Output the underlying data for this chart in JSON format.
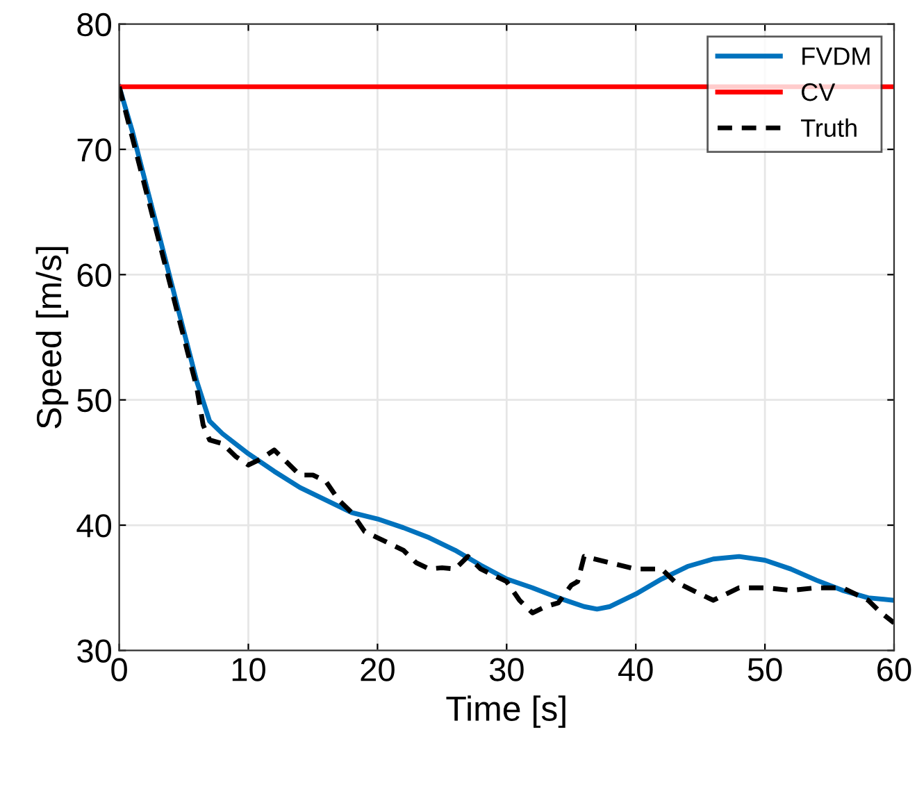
{
  "chart_data": {
    "type": "line",
    "xlabel": "Time [s]",
    "ylabel": "Speed [m/s]",
    "xlim": [
      0,
      60
    ],
    "ylim": [
      30,
      80
    ],
    "xticks": [
      0,
      10,
      20,
      30,
      40,
      50,
      60
    ],
    "yticks": [
      30,
      40,
      50,
      60,
      70,
      80
    ],
    "grid": true,
    "legend": "top right",
    "series": [
      {
        "name": "FVDM",
        "color": "#0072bd",
        "line_style": "solid",
        "x": [
          0,
          1,
          2,
          3,
          4,
          5,
          6,
          7,
          8,
          10,
          12,
          14,
          16,
          18,
          20,
          22,
          24,
          26,
          28,
          30,
          32,
          34,
          36,
          37,
          38,
          40,
          42,
          44,
          46,
          48,
          50,
          52,
          54,
          56,
          58,
          60
        ],
        "values": [
          75,
          71.5,
          67.5,
          63.5,
          59.5,
          55.5,
          51.5,
          48.3,
          47.3,
          45.7,
          44.3,
          43.0,
          42.0,
          41.0,
          40.5,
          39.8,
          39.0,
          38.0,
          36.8,
          35.7,
          35.0,
          34.2,
          33.5,
          33.3,
          33.5,
          34.5,
          35.7,
          36.7,
          37.3,
          37.5,
          37.2,
          36.5,
          35.6,
          34.8,
          34.2,
          34.0
        ]
      },
      {
        "name": "CV",
        "color": "#ff0000",
        "line_style": "solid",
        "x": [
          0,
          60
        ],
        "values": [
          75,
          75
        ]
      },
      {
        "name": "Truth",
        "color": "#000000",
        "line_style": "dashed",
        "x": [
          0,
          1,
          2,
          3,
          4,
          5,
          6,
          6.5,
          7,
          8,
          9,
          10,
          11,
          12,
          13,
          14,
          15,
          16,
          17,
          18,
          19,
          20,
          21,
          22,
          23,
          24,
          25,
          26,
          27,
          28,
          29,
          30,
          31,
          32,
          33,
          34,
          35,
          35.5,
          36,
          38,
          40,
          42,
          43,
          44,
          45,
          46,
          47,
          48,
          50,
          52,
          54,
          56,
          57,
          58,
          59,
          60
        ],
        "values": [
          75,
          71,
          67,
          63,
          59,
          55,
          51,
          48,
          46.8,
          46.5,
          45.5,
          44.8,
          45.3,
          46.0,
          45.0,
          44.0,
          44.0,
          43.5,
          42.0,
          41.0,
          39.5,
          39.0,
          38.5,
          38.0,
          37.0,
          36.5,
          36.6,
          36.5,
          37.5,
          36.5,
          36.0,
          35.5,
          34.0,
          33.0,
          33.5,
          33.8,
          35.2,
          35.5,
          37.5,
          37.0,
          36.5,
          36.5,
          35.5,
          35.0,
          34.5,
          34.0,
          34.5,
          35.0,
          35.0,
          34.8,
          35.0,
          35.0,
          34.5,
          34.0,
          33.0,
          32.2
        ]
      }
    ]
  }
}
